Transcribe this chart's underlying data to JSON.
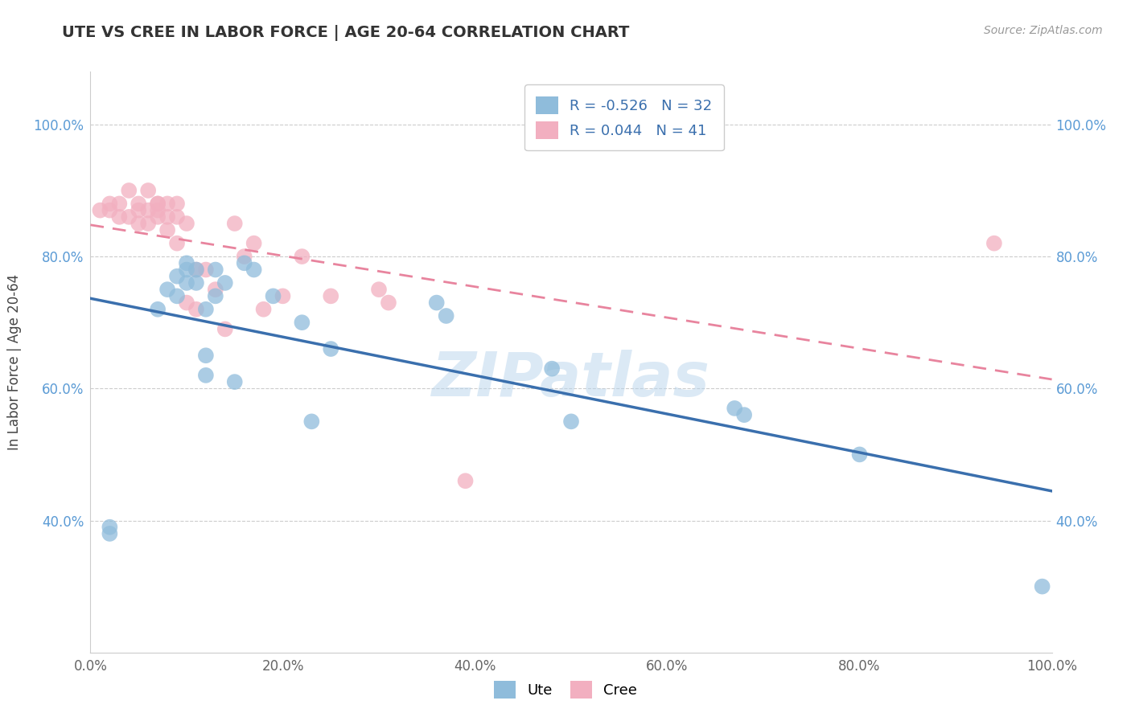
{
  "title": "UTE VS CREE IN LABOR FORCE | AGE 20-64 CORRELATION CHART",
  "source_text": "Source: ZipAtlas.com",
  "ylabel": "In Labor Force | Age 20-64",
  "xlim": [
    0.0,
    1.0
  ],
  "ylim": [
    0.2,
    1.08
  ],
  "xtick_labels": [
    "0.0%",
    "",
    "",
    "",
    "",
    "",
    "",
    "",
    "",
    "",
    "20.0%",
    "",
    "",
    "",
    "",
    "",
    "",
    "",
    "",
    "",
    "40.0%",
    "",
    "",
    "",
    "",
    "",
    "",
    "",
    "",
    "",
    "60.0%",
    "",
    "",
    "",
    "",
    "",
    "",
    "",
    "",
    "",
    "80.0%",
    "",
    "",
    "",
    "",
    "",
    "",
    "",
    "",
    "",
    "100.0%"
  ],
  "xtick_vals": [
    0.0,
    0.2,
    0.4,
    0.6,
    0.8,
    1.0
  ],
  "xtick_display": [
    "0.0%",
    "20.0%",
    "40.0%",
    "60.0%",
    "80.0%",
    "100.0%"
  ],
  "ytick_labels": [
    "40.0%",
    "60.0%",
    "80.0%",
    "100.0%"
  ],
  "ytick_vals": [
    0.4,
    0.6,
    0.8,
    1.0
  ],
  "ute_color": "#8fbcdb",
  "cree_color": "#f2afc0",
  "ute_line_color": "#3a6fad",
  "cree_line_color": "#e8849e",
  "ute_R": -0.526,
  "ute_N": 32,
  "cree_R": 0.044,
  "cree_N": 41,
  "watermark": "ZIPatlas",
  "ute_x": [
    0.02,
    0.02,
    0.07,
    0.08,
    0.09,
    0.09,
    0.1,
    0.1,
    0.1,
    0.11,
    0.11,
    0.12,
    0.12,
    0.12,
    0.13,
    0.13,
    0.14,
    0.15,
    0.16,
    0.17,
    0.19,
    0.22,
    0.23,
    0.25,
    0.36,
    0.37,
    0.48,
    0.5,
    0.67,
    0.68,
    0.8,
    0.99
  ],
  "ute_y": [
    0.38,
    0.39,
    0.72,
    0.75,
    0.74,
    0.77,
    0.76,
    0.78,
    0.79,
    0.76,
    0.78,
    0.62,
    0.72,
    0.65,
    0.74,
    0.78,
    0.76,
    0.61,
    0.79,
    0.78,
    0.74,
    0.7,
    0.55,
    0.66,
    0.73,
    0.71,
    0.63,
    0.55,
    0.57,
    0.56,
    0.5,
    0.3
  ],
  "cree_x": [
    0.01,
    0.02,
    0.02,
    0.03,
    0.03,
    0.04,
    0.04,
    0.05,
    0.05,
    0.05,
    0.06,
    0.06,
    0.06,
    0.07,
    0.07,
    0.07,
    0.07,
    0.08,
    0.08,
    0.08,
    0.09,
    0.09,
    0.09,
    0.1,
    0.1,
    0.11,
    0.11,
    0.12,
    0.13,
    0.14,
    0.15,
    0.16,
    0.17,
    0.18,
    0.2,
    0.22,
    0.25,
    0.3,
    0.31,
    0.39,
    0.94
  ],
  "cree_y": [
    0.87,
    0.87,
    0.88,
    0.86,
    0.88,
    0.86,
    0.9,
    0.85,
    0.87,
    0.88,
    0.85,
    0.87,
    0.9,
    0.86,
    0.88,
    0.87,
    0.88,
    0.84,
    0.86,
    0.88,
    0.82,
    0.86,
    0.88,
    0.73,
    0.85,
    0.72,
    0.78,
    0.78,
    0.75,
    0.69,
    0.85,
    0.8,
    0.82,
    0.72,
    0.74,
    0.8,
    0.74,
    0.75,
    0.73,
    0.46,
    0.82
  ]
}
